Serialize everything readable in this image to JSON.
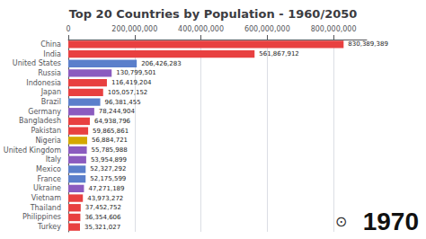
{
  "chart_data": {
    "type": "bar",
    "orientation": "horizontal",
    "title": "Top 20 Countries by Population - 1960/2050",
    "categories": [
      "China",
      "India",
      "United States",
      "Russia",
      "Indonesia",
      "Japan",
      "Brazil",
      "Germany",
      "Bangladesh",
      "Pakistan",
      "Nigeria",
      "United Kingdom",
      "Italy",
      "Mexico",
      "France",
      "Ukraine",
      "Vietnam",
      "Thailand",
      "Philippines",
      "Turkey"
    ],
    "values": [
      830389389,
      561867912,
      206426283,
      130799501,
      116419204,
      105057152,
      96381455,
      78244904,
      64938796,
      59865861,
      56884721,
      55785988,
      53954899,
      52327292,
      52175599,
      47271189,
      43973272,
      37452752,
      36354606,
      35321027
    ],
    "value_labels": [
      "830,389,389",
      "561,867,912",
      "206,426,283",
      "130,799,501",
      "116,419,204",
      "105,057,152",
      "96,381,455",
      "78,244,904",
      "64,938,796",
      "59,865,861",
      "56,884,721",
      "55,785,988",
      "53,954,899",
      "52,327,292",
      "52,175,599",
      "47,271,189",
      "43,973,272",
      "37,452,752",
      "36,354,606",
      "35,321,027"
    ],
    "colors": [
      "#e84040",
      "#e84040",
      "#5b7fcb",
      "#8b5bbf",
      "#e84040",
      "#e84040",
      "#5b7fcb",
      "#8b5bbf",
      "#e84040",
      "#e84040",
      "#d4a800",
      "#8b5bbf",
      "#8b5bbf",
      "#5b7fcb",
      "#5b7fcb",
      "#8b5bbf",
      "#e84040",
      "#e84040",
      "#e84040",
      "#e84040"
    ],
    "data_labels": true,
    "xlim": [
      0,
      900000000
    ],
    "xticks": [
      0,
      {
        "value": 200000000,
        "label": "200,000,000"
      },
      {
        "value": 400000000,
        "label": "400,000,000"
      },
      {
        "value": 600000000,
        "label": "600,000,000"
      },
      {
        "value": 800000000,
        "label": "800,000,000"
      }
    ],
    "grid": true,
    "annotations": [
      "⊙",
      "1970"
    ]
  }
}
